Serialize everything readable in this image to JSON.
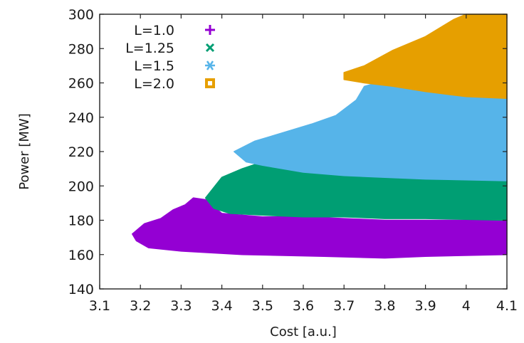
{
  "chart_data": {
    "type": "area",
    "title": "",
    "xlabel": "Cost [a.u.]",
    "ylabel": "Power [MW]",
    "xlim": [
      3.1,
      4.1
    ],
    "ylim": [
      140,
      300
    ],
    "xticks": [
      "3.1",
      "3.2",
      "3.3",
      "3.4",
      "3.5",
      "3.6",
      "3.7",
      "3.8",
      "3.9",
      "4",
      "4.1"
    ],
    "yticks": [
      "140",
      "160",
      "180",
      "200",
      "220",
      "240",
      "260",
      "280",
      "300"
    ],
    "grid": false,
    "legend_position": "top-left",
    "series": [
      {
        "name": "L=1.0",
        "marker": "+",
        "color": "#9400d3",
        "outline": [
          [
            3.18,
            172
          ],
          [
            3.21,
            178
          ],
          [
            3.25,
            181
          ],
          [
            3.28,
            186
          ],
          [
            3.31,
            189
          ],
          [
            3.33,
            193
          ],
          [
            3.36,
            192
          ],
          [
            3.4,
            184
          ],
          [
            3.5,
            182
          ],
          [
            3.6,
            182
          ],
          [
            3.7,
            181
          ],
          [
            3.8,
            180
          ],
          [
            3.9,
            180
          ],
          [
            4.1,
            180
          ],
          [
            4.1,
            160
          ],
          [
            3.9,
            159
          ],
          [
            3.8,
            158
          ],
          [
            3.65,
            159
          ],
          [
            3.45,
            160
          ],
          [
            3.3,
            162
          ],
          [
            3.22,
            164
          ],
          [
            3.19,
            168
          ]
        ]
      },
      {
        "name": "L=1.25",
        "marker": "x",
        "color": "#009e73",
        "outline": [
          [
            3.36,
            193
          ],
          [
            3.4,
            205
          ],
          [
            3.45,
            210
          ],
          [
            3.5,
            214
          ],
          [
            3.55,
            212
          ],
          [
            3.6,
            208
          ],
          [
            3.7,
            206
          ],
          [
            3.8,
            205
          ],
          [
            3.9,
            204
          ],
          [
            4.1,
            203
          ],
          [
            4.1,
            180
          ],
          [
            3.9,
            181
          ],
          [
            3.8,
            181
          ],
          [
            3.7,
            182
          ],
          [
            3.6,
            182
          ],
          [
            3.5,
            183
          ],
          [
            3.42,
            184
          ],
          [
            3.38,
            187
          ]
        ]
      },
      {
        "name": "L=1.5",
        "marker": "*",
        "color": "#56b4e9",
        "outline": [
          [
            3.43,
            220
          ],
          [
            3.48,
            226
          ],
          [
            3.55,
            231
          ],
          [
            3.62,
            236
          ],
          [
            3.68,
            241
          ],
          [
            3.73,
            250
          ],
          [
            3.75,
            258
          ],
          [
            3.78,
            260
          ],
          [
            3.84,
            258
          ],
          [
            3.9,
            255
          ],
          [
            4.0,
            252
          ],
          [
            4.1,
            251
          ],
          [
            4.1,
            203
          ],
          [
            3.9,
            204
          ],
          [
            3.8,
            205
          ],
          [
            3.7,
            206
          ],
          [
            3.6,
            208
          ],
          [
            3.55,
            210
          ],
          [
            3.5,
            212
          ],
          [
            3.46,
            214
          ]
        ]
      },
      {
        "name": "L=2.0",
        "marker": "square",
        "color": "#e69f00",
        "outline": [
          [
            3.7,
            266
          ],
          [
            3.75,
            270
          ],
          [
            3.82,
            279
          ],
          [
            3.9,
            287
          ],
          [
            3.97,
            297
          ],
          [
            4.0,
            300
          ],
          [
            4.1,
            300
          ],
          [
            4.1,
            251
          ],
          [
            4.0,
            252
          ],
          [
            3.9,
            255
          ],
          [
            3.82,
            258
          ],
          [
            3.75,
            260
          ],
          [
            3.7,
            262
          ]
        ]
      }
    ]
  }
}
